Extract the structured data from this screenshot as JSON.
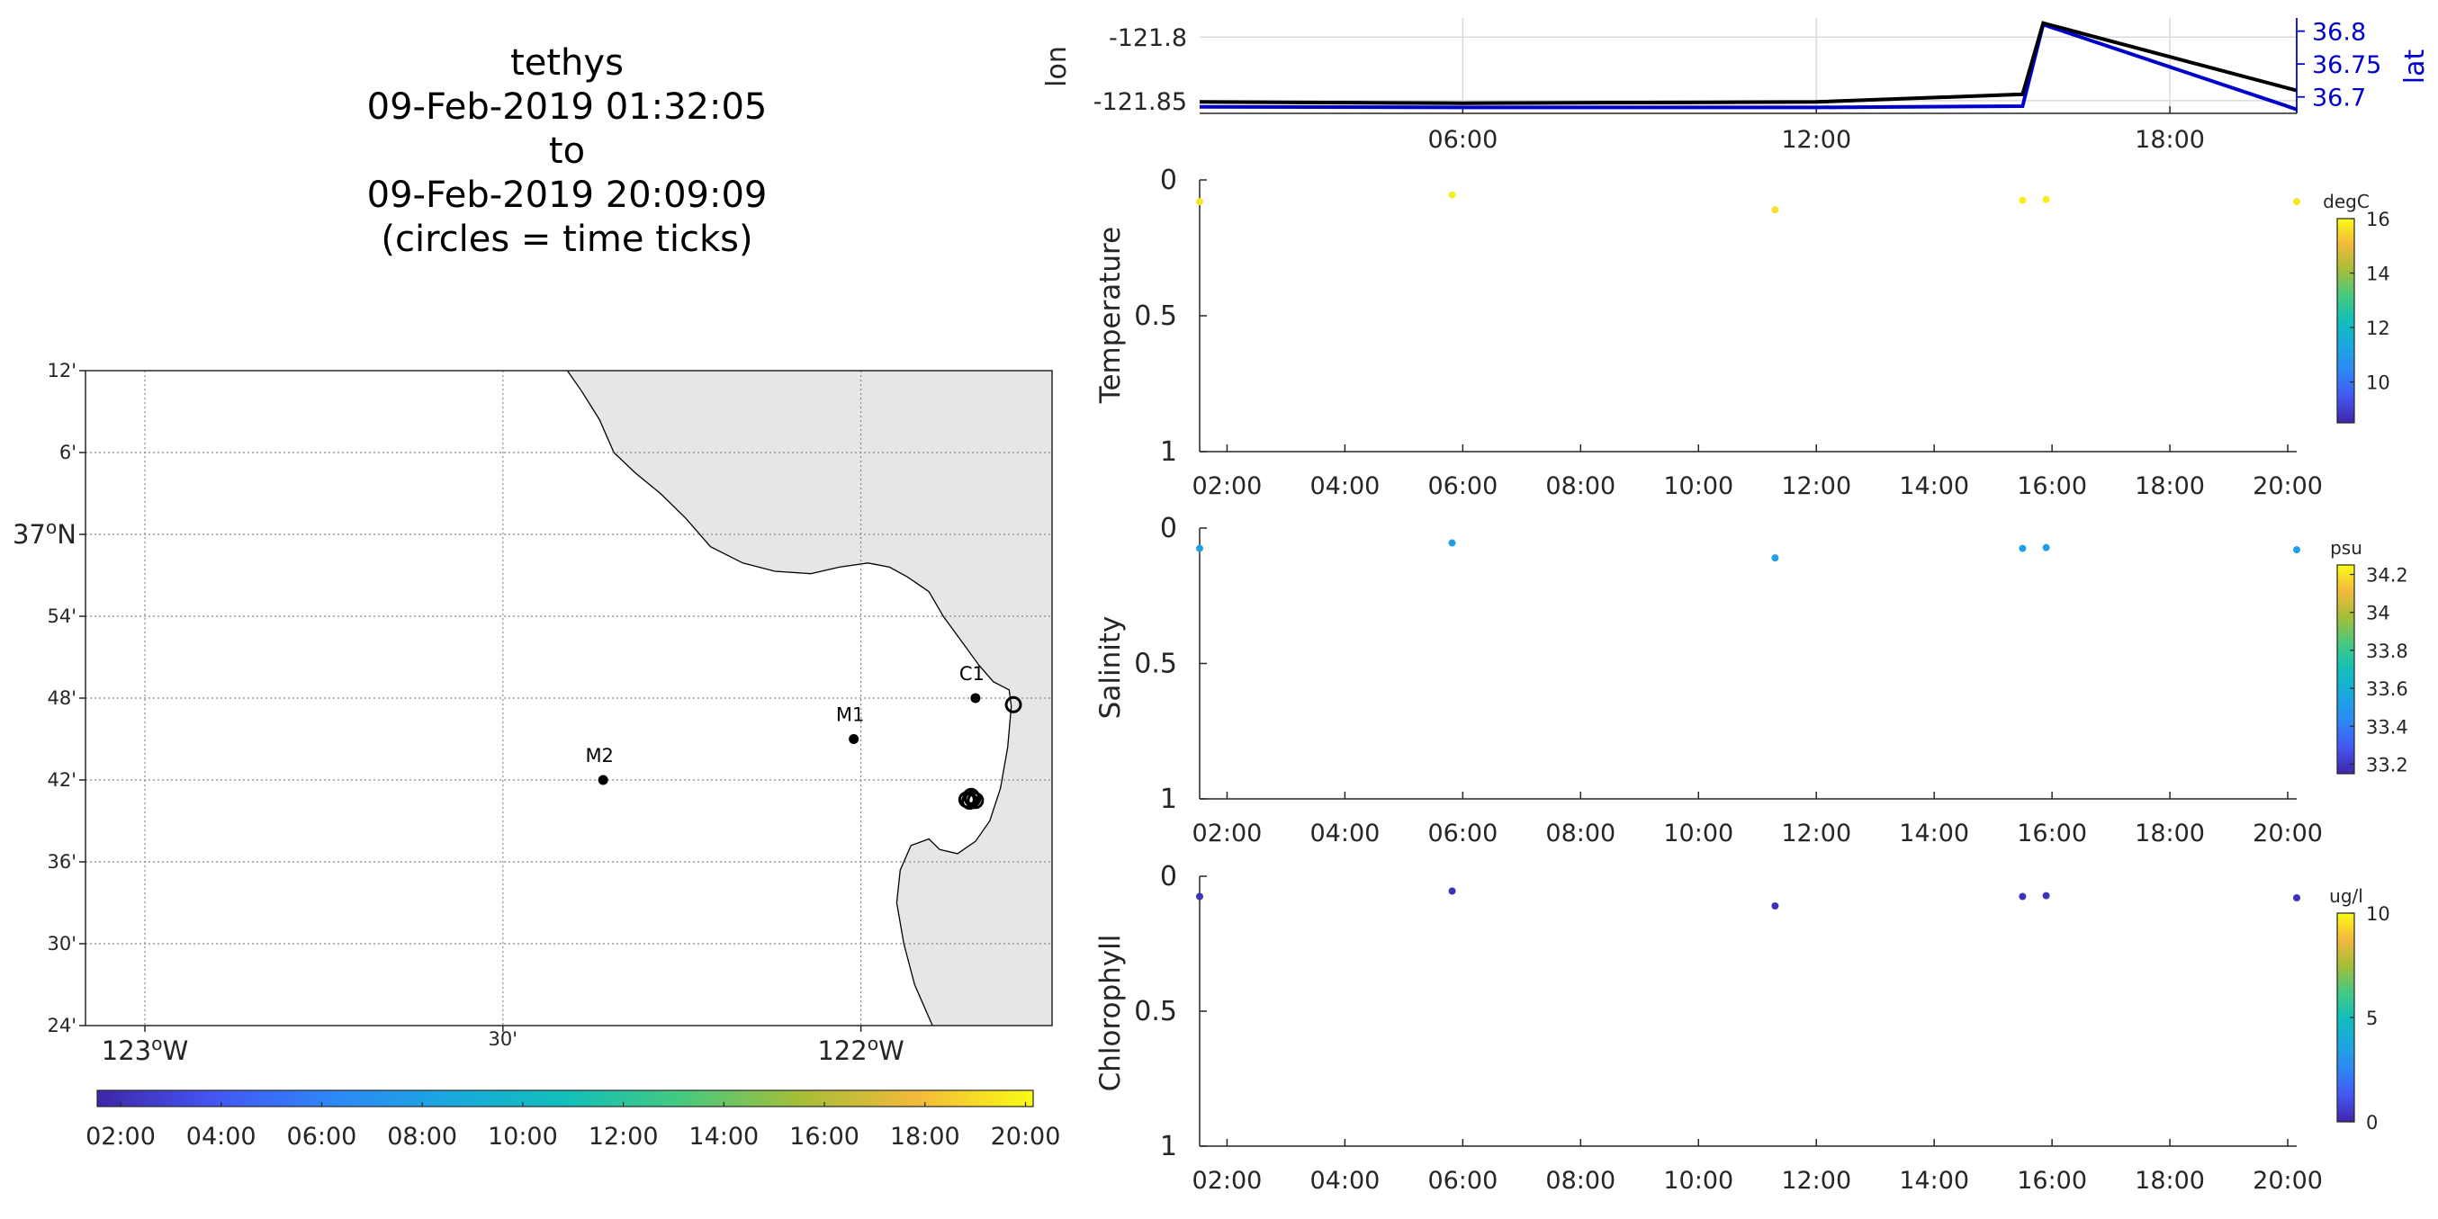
{
  "header": {
    "title_lines": [
      "tethys",
      "09-Feb-2019 01:32:05",
      "to",
      "09-Feb-2019 20:09:09",
      "(circles = time ticks)"
    ]
  },
  "colors": {
    "land": "#e6e6e6",
    "lon_line": "#000000",
    "lat_line": "#0000cc",
    "time_colormap": [
      "#3e26a8",
      "#4456f2",
      "#2e87f7",
      "#1aa8df",
      "#12bfb9",
      "#47c97f",
      "#a5be38",
      "#f3b93b",
      "#f9fb15"
    ]
  },
  "chart_data": [
    {
      "type": "map",
      "name": "track-map",
      "lon_range": [
        -123.083,
        -121.733
      ],
      "lat_range": [
        36.4,
        37.2
      ],
      "lat_ticks": [
        {
          "value": 37.2,
          "label": "12'"
        },
        {
          "value": 37.1,
          "label": "6'"
        },
        {
          "value": 37.0,
          "label": "37°N"
        },
        {
          "value": 36.9,
          "label": "54'"
        },
        {
          "value": 36.8,
          "label": "48'"
        },
        {
          "value": 36.7,
          "label": "42'"
        },
        {
          "value": 36.6,
          "label": "36'"
        },
        {
          "value": 36.5,
          "label": "30'"
        },
        {
          "value": 36.4,
          "label": "24'"
        }
      ],
      "lon_ticks": [
        {
          "value": -123.0,
          "label": "123°W"
        },
        {
          "value": -122.5,
          "label": "30'"
        },
        {
          "value": -122.0,
          "label": "122°W"
        }
      ],
      "stations": [
        {
          "name": "M2",
          "lon": -122.36,
          "lat": 36.7
        },
        {
          "name": "M1",
          "lon": -122.01,
          "lat": 36.75
        },
        {
          "name": "C1",
          "lon": -121.84,
          "lat": 36.8
        }
      ],
      "track_circles": [
        {
          "lon": -121.787,
          "lat": 36.792
        },
        {
          "lon": -121.844,
          "lat": 36.677
        },
        {
          "lon": -121.848,
          "lat": 36.674
        },
        {
          "lon": -121.84,
          "lat": 36.675
        },
        {
          "lon": -121.846,
          "lat": 36.68
        },
        {
          "lon": -121.852,
          "lat": 36.676
        }
      ],
      "coastline": [
        [
          -122.41,
          37.2
        ],
        [
          -122.39,
          37.175
        ],
        [
          -122.365,
          37.14
        ],
        [
          -122.345,
          37.1
        ],
        [
          -122.315,
          37.075
        ],
        [
          -122.28,
          37.05
        ],
        [
          -122.245,
          37.02
        ],
        [
          -122.21,
          36.985
        ],
        [
          -122.165,
          36.965
        ],
        [
          -122.12,
          36.955
        ],
        [
          -122.07,
          36.952
        ],
        [
          -122.03,
          36.96
        ],
        [
          -121.99,
          36.965
        ],
        [
          -121.96,
          36.96
        ],
        [
          -121.935,
          36.948
        ],
        [
          -121.905,
          36.93
        ],
        [
          -121.885,
          36.9
        ],
        [
          -121.86,
          36.87
        ],
        [
          -121.835,
          36.84
        ],
        [
          -121.815,
          36.82
        ],
        [
          -121.793,
          36.81
        ],
        [
          -121.79,
          36.79
        ],
        [
          -121.795,
          36.74
        ],
        [
          -121.805,
          36.69
        ],
        [
          -121.82,
          36.65
        ],
        [
          -121.84,
          36.625
        ],
        [
          -121.865,
          36.61
        ],
        [
          -121.89,
          36.615
        ],
        [
          -121.905,
          36.628
        ],
        [
          -121.93,
          36.62
        ],
        [
          -121.945,
          36.59
        ],
        [
          -121.95,
          36.55
        ],
        [
          -121.94,
          36.5
        ],
        [
          -121.925,
          36.45
        ],
        [
          -121.9,
          36.4
        ]
      ],
      "colorbar": {
        "orientation": "horizontal",
        "ticks": [
          "02:00",
          "04:00",
          "06:00",
          "08:00",
          "10:00",
          "12:00",
          "14:00",
          "16:00",
          "18:00",
          "20:00"
        ]
      }
    },
    {
      "type": "line",
      "name": "lon-lat",
      "x_ticks": [
        "06:00",
        "12:00",
        "18:00"
      ],
      "x_range_hours": [
        1.535,
        20.152
      ],
      "ylabel_left": "lon",
      "ylabel_right": "lat",
      "y_left_range": [
        -121.86,
        -121.785
      ],
      "y_left_ticks": [
        "-121.8",
        "-121.85"
      ],
      "y_right_range": [
        36.675,
        36.82
      ],
      "y_right_ticks": [
        "36.8",
        "36.75",
        "36.7"
      ],
      "series": [
        {
          "name": "lon",
          "axis": "left",
          "x_hours": [
            1.535,
            6.0,
            12.0,
            15.5,
            15.85,
            20.152
          ],
          "y": [
            -121.851,
            -121.852,
            -121.851,
            -121.845,
            -121.789,
            -121.842
          ]
        },
        {
          "name": "lat",
          "axis": "right",
          "x_hours": [
            1.535,
            6.0,
            12.0,
            15.5,
            15.85,
            20.152
          ],
          "y": [
            36.685,
            36.684,
            36.684,
            36.686,
            36.81,
            36.681
          ]
        }
      ]
    },
    {
      "type": "scatter",
      "name": "temperature",
      "ylabel": "Temperature",
      "y_range": [
        0,
        1
      ],
      "y_ticks": [
        "0",
        "0.5",
        "1"
      ],
      "x_ticks": [
        "02:00",
        "04:00",
        "06:00",
        "08:00",
        "10:00",
        "12:00",
        "14:00",
        "16:00",
        "18:00",
        "20:00"
      ],
      "x_range_hours": [
        1.535,
        20.152
      ],
      "color_range": [
        8.5,
        16
      ],
      "colorbar_unit": "degC",
      "colorbar_ticks": [
        "16",
        "14",
        "12",
        "10"
      ],
      "points": [
        {
          "x_hours": 1.535,
          "y": 0.08,
          "c": 15.7
        },
        {
          "x_hours": 5.82,
          "y": 0.055,
          "c": 15.8
        },
        {
          "x_hours": 11.3,
          "y": 0.11,
          "c": 15.6
        },
        {
          "x_hours": 15.5,
          "y": 0.075,
          "c": 15.8
        },
        {
          "x_hours": 15.9,
          "y": 0.072,
          "c": 15.8
        },
        {
          "x_hours": 20.152,
          "y": 0.08,
          "c": 15.7
        }
      ]
    },
    {
      "type": "scatter",
      "name": "salinity",
      "ylabel": "Salinity",
      "y_range": [
        0,
        1
      ],
      "y_ticks": [
        "0",
        "0.5",
        "1"
      ],
      "x_ticks": [
        "02:00",
        "04:00",
        "06:00",
        "08:00",
        "10:00",
        "12:00",
        "14:00",
        "16:00",
        "18:00",
        "20:00"
      ],
      "x_range_hours": [
        1.535,
        20.152
      ],
      "color_range": [
        33.15,
        34.25
      ],
      "colorbar_unit": "psu",
      "colorbar_ticks": [
        "34.2",
        "34",
        "33.8",
        "33.6",
        "33.4",
        "33.2"
      ],
      "points": [
        {
          "x_hours": 1.535,
          "y": 0.075,
          "c": 33.52
        },
        {
          "x_hours": 5.82,
          "y": 0.055,
          "c": 33.52
        },
        {
          "x_hours": 11.3,
          "y": 0.11,
          "c": 33.52
        },
        {
          "x_hours": 15.5,
          "y": 0.075,
          "c": 33.52
        },
        {
          "x_hours": 15.9,
          "y": 0.072,
          "c": 33.52
        },
        {
          "x_hours": 20.152,
          "y": 0.08,
          "c": 33.52
        }
      ]
    },
    {
      "type": "scatter",
      "name": "chlorophyll",
      "ylabel": "Chlorophyll",
      "y_range": [
        0,
        1
      ],
      "y_ticks": [
        "0",
        "0.5",
        "1"
      ],
      "x_ticks": [
        "02:00",
        "04:00",
        "06:00",
        "08:00",
        "10:00",
        "12:00",
        "14:00",
        "16:00",
        "18:00",
        "20:00"
      ],
      "x_range_hours": [
        1.535,
        20.152
      ],
      "color_range": [
        0,
        10
      ],
      "colorbar_unit": "ug/l",
      "colorbar_ticks": [
        "10",
        "5",
        "0"
      ],
      "points": [
        {
          "x_hours": 1.535,
          "y": 0.075,
          "c": 0.3
        },
        {
          "x_hours": 5.82,
          "y": 0.055,
          "c": 0.3
        },
        {
          "x_hours": 11.3,
          "y": 0.11,
          "c": 0.3
        },
        {
          "x_hours": 15.5,
          "y": 0.075,
          "c": 0.3
        },
        {
          "x_hours": 15.9,
          "y": 0.072,
          "c": 0.3
        },
        {
          "x_hours": 20.152,
          "y": 0.08,
          "c": 0.3
        }
      ]
    }
  ]
}
